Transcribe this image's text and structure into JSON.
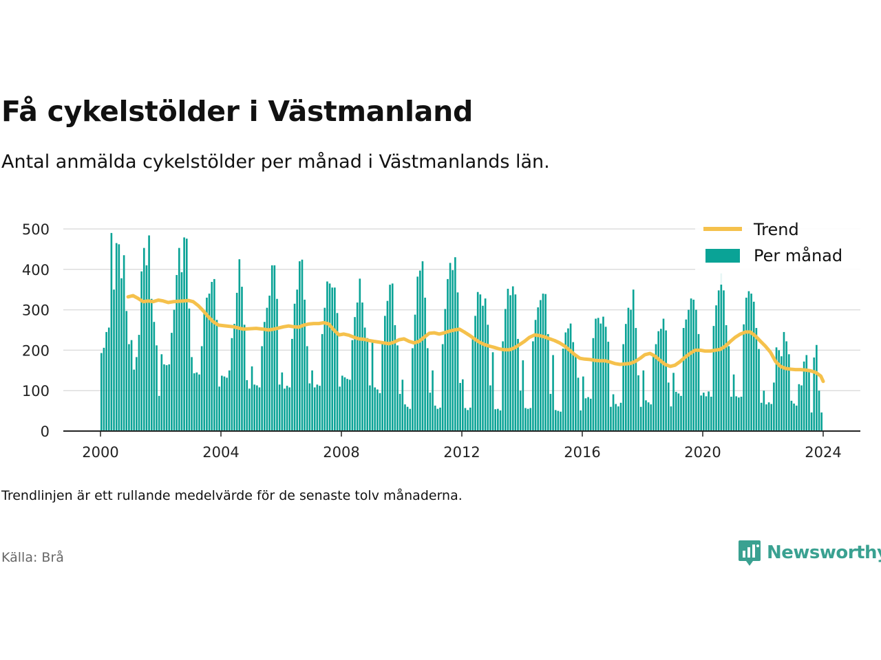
{
  "header": {
    "title": "Få cykelstölder i Västmanland",
    "subtitle": "Antal anmälda cykelstölder per månad i Västmanlands län."
  },
  "footer": {
    "note": "Trendlinjen är ett rullande medelvärde för de senaste tolv månaderna.",
    "source": "Källa: Brå",
    "brand": "Newsworthy"
  },
  "colors": {
    "bars": "#0aa396",
    "trend": "#f5c14c",
    "grid": "#dddddd",
    "brand": "#3aa191"
  },
  "chart_data": {
    "type": "bar",
    "title": "Få cykelstölder i Västmanland",
    "subtitle": "Antal anmälda cykelstölder per månad i Västmanlands län.",
    "ylim": [
      0,
      500
    ],
    "y_ticks": [
      0,
      100,
      200,
      300,
      400,
      500
    ],
    "x_ticks": [
      "2000",
      "2004",
      "2008",
      "2012",
      "2016",
      "2020",
      "2024"
    ],
    "legend": {
      "position": "top-right",
      "entries": [
        "Trend",
        "Per månad"
      ]
    },
    "grid": true,
    "series": [
      {
        "name": "Per månad",
        "type": "bar",
        "start": "2000-01",
        "values": [
          193,
          206,
          245,
          256,
          490,
          350,
          465,
          462,
          378,
          435,
          297,
          215,
          225,
          152,
          183,
          238,
          395,
          453,
          410,
          484,
          327,
          270,
          212,
          87,
          190,
          165,
          163,
          165,
          243,
          300,
          386,
          453,
          393,
          479,
          476,
          303,
          183,
          143,
          145,
          140,
          210,
          290,
          330,
          340,
          369,
          376,
          275,
          110,
          137,
          135,
          132,
          150,
          230,
          265,
          342,
          425,
          357,
          263,
          126,
          105,
          160,
          115,
          113,
          108,
          210,
          270,
          305,
          335,
          410,
          410,
          327,
          115,
          145,
          105,
          112,
          108,
          228,
          315,
          350,
          420,
          424,
          325,
          210,
          118,
          150,
          108,
          115,
          112,
          240,
          305,
          370,
          365,
          355,
          355,
          292,
          110,
          137,
          133,
          129,
          127,
          225,
          282,
          318,
          377,
          318,
          256,
          230,
          113,
          220,
          108,
          103,
          94,
          220,
          285,
          322,
          362,
          365,
          262,
          212,
          92,
          127,
          66,
          60,
          55,
          205,
          288,
          382,
          397,
          420,
          330,
          205,
          95,
          150,
          63,
          55,
          58,
          215,
          302,
          376,
          416,
          398,
          430,
          343,
          119,
          128,
          57,
          52,
          58,
          230,
          285,
          344,
          338,
          310,
          328,
          263,
          113,
          195,
          54,
          55,
          51,
          222,
          302,
          352,
          336,
          358,
          338,
          228,
          100,
          175,
          57,
          55,
          57,
          222,
          275,
          306,
          324,
          340,
          339,
          240,
          92,
          188,
          52,
          50,
          48,
          204,
          244,
          254,
          266,
          220,
          187,
          132,
          51,
          135,
          81,
          84,
          80,
          230,
          278,
          280,
          266,
          283,
          258,
          221,
          60,
          91,
          67,
          61,
          70,
          215,
          265,
          305,
          300,
          350,
          255,
          138,
          60,
          150,
          76,
          71,
          66,
          190,
          215,
          247,
          253,
          278,
          249,
          120,
          61,
          144,
          97,
          93,
          87,
          255,
          276,
          300,
          328,
          325,
          300,
          240,
          88,
          95,
          86,
          98,
          85,
          260,
          311,
          348,
          390,
          348,
          262,
          210,
          85,
          140,
          86,
          83,
          85,
          264,
          330,
          346,
          340,
          320,
          255,
          203,
          70,
          100,
          66,
          71,
          67,
          120,
          207,
          200,
          185,
          245,
          222,
          190,
          75,
          68,
          63,
          116,
          113,
          172,
          188,
          152,
          46,
          182,
          213,
          100,
          46
        ]
      },
      {
        "name": "Trend",
        "type": "line",
        "start": "2000-12",
        "points": [
          [
            2000.917,
            332
          ],
          [
            2001.08,
            335
          ],
          [
            2001.25,
            328
          ],
          [
            2001.42,
            320
          ],
          [
            2001.58,
            322
          ],
          [
            2001.75,
            320
          ],
          [
            2001.92,
            324
          ],
          [
            2002.08,
            322
          ],
          [
            2002.25,
            318
          ],
          [
            2002.42,
            320
          ],
          [
            2002.58,
            321
          ],
          [
            2002.75,
            322
          ],
          [
            2002.92,
            323
          ],
          [
            2003.08,
            320
          ],
          [
            2003.25,
            310
          ],
          [
            2003.42,
            297
          ],
          [
            2003.58,
            283
          ],
          [
            2003.75,
            270
          ],
          [
            2003.92,
            262
          ],
          [
            2004.17,
            260
          ],
          [
            2004.42,
            258
          ],
          [
            2004.58,
            255
          ],
          [
            2004.75,
            252
          ],
          [
            2004.92,
            253
          ],
          [
            2005.17,
            254
          ],
          [
            2005.42,
            252
          ],
          [
            2005.58,
            250
          ],
          [
            2005.75,
            252
          ],
          [
            2005.92,
            255
          ],
          [
            2006.08,
            258
          ],
          [
            2006.25,
            260
          ],
          [
            2006.42,
            258
          ],
          [
            2006.58,
            257
          ],
          [
            2006.75,
            262
          ],
          [
            2006.92,
            265
          ],
          [
            2007.08,
            266
          ],
          [
            2007.25,
            266
          ],
          [
            2007.42,
            268
          ],
          [
            2007.58,
            265
          ],
          [
            2007.75,
            250
          ],
          [
            2007.92,
            238
          ],
          [
            2008.08,
            240
          ],
          [
            2008.25,
            237
          ],
          [
            2008.42,
            232
          ],
          [
            2008.58,
            228
          ],
          [
            2008.75,
            227
          ],
          [
            2008.92,
            224
          ],
          [
            2009.08,
            222
          ],
          [
            2009.25,
            220
          ],
          [
            2009.42,
            218
          ],
          [
            2009.58,
            216
          ],
          [
            2009.75,
            220
          ],
          [
            2009.92,
            226
          ],
          [
            2010.08,
            228
          ],
          [
            2010.25,
            222
          ],
          [
            2010.42,
            218
          ],
          [
            2010.58,
            222
          ],
          [
            2010.75,
            232
          ],
          [
            2010.92,
            242
          ],
          [
            2011.08,
            243
          ],
          [
            2011.25,
            240
          ],
          [
            2011.42,
            243
          ],
          [
            2011.58,
            247
          ],
          [
            2011.75,
            250
          ],
          [
            2011.92,
            252
          ],
          [
            2012.08,
            245
          ],
          [
            2012.25,
            237
          ],
          [
            2012.42,
            228
          ],
          [
            2012.58,
            220
          ],
          [
            2012.75,
            214
          ],
          [
            2012.92,
            210
          ],
          [
            2013.08,
            207
          ],
          [
            2013.25,
            203
          ],
          [
            2013.42,
            201
          ],
          [
            2013.58,
            201
          ],
          [
            2013.75,
            206
          ],
          [
            2013.92,
            214
          ],
          [
            2014.08,
            222
          ],
          [
            2014.25,
            232
          ],
          [
            2014.42,
            238
          ],
          [
            2014.58,
            236
          ],
          [
            2014.75,
            233
          ],
          [
            2014.92,
            228
          ],
          [
            2015.08,
            224
          ],
          [
            2015.25,
            218
          ],
          [
            2015.42,
            210
          ],
          [
            2015.58,
            200
          ],
          [
            2015.75,
            189
          ],
          [
            2015.92,
            180
          ],
          [
            2016.08,
            178
          ],
          [
            2016.25,
            177
          ],
          [
            2016.42,
            175
          ],
          [
            2016.58,
            174
          ],
          [
            2016.75,
            174
          ],
          [
            2016.92,
            171
          ],
          [
            2017.08,
            167
          ],
          [
            2017.25,
            165
          ],
          [
            2017.42,
            166
          ],
          [
            2017.58,
            167
          ],
          [
            2017.75,
            172
          ],
          [
            2017.92,
            180
          ],
          [
            2018.08,
            189
          ],
          [
            2018.25,
            192
          ],
          [
            2018.42,
            185
          ],
          [
            2018.58,
            175
          ],
          [
            2018.75,
            165
          ],
          [
            2018.92,
            160
          ],
          [
            2019.08,
            163
          ],
          [
            2019.25,
            172
          ],
          [
            2019.42,
            183
          ],
          [
            2019.58,
            192
          ],
          [
            2019.75,
            200
          ],
          [
            2019.92,
            200
          ],
          [
            2020.08,
            198
          ],
          [
            2020.25,
            198
          ],
          [
            2020.42,
            200
          ],
          [
            2020.58,
            202
          ],
          [
            2020.75,
            210
          ],
          [
            2020.92,
            222
          ],
          [
            2021.08,
            232
          ],
          [
            2021.25,
            240
          ],
          [
            2021.42,
            245
          ],
          [
            2021.58,
            245
          ],
          [
            2021.75,
            235
          ],
          [
            2021.92,
            222
          ],
          [
            2022.08,
            210
          ],
          [
            2022.25,
            195
          ],
          [
            2022.42,
            172
          ],
          [
            2022.58,
            160
          ],
          [
            2022.75,
            155
          ],
          [
            2022.92,
            153
          ],
          [
            2023.08,
            152
          ],
          [
            2023.25,
            152
          ],
          [
            2023.42,
            151
          ],
          [
            2023.58,
            149
          ],
          [
            2023.75,
            145
          ],
          [
            2023.92,
            136
          ],
          [
            2024.0,
            123
          ]
        ]
      }
    ]
  }
}
